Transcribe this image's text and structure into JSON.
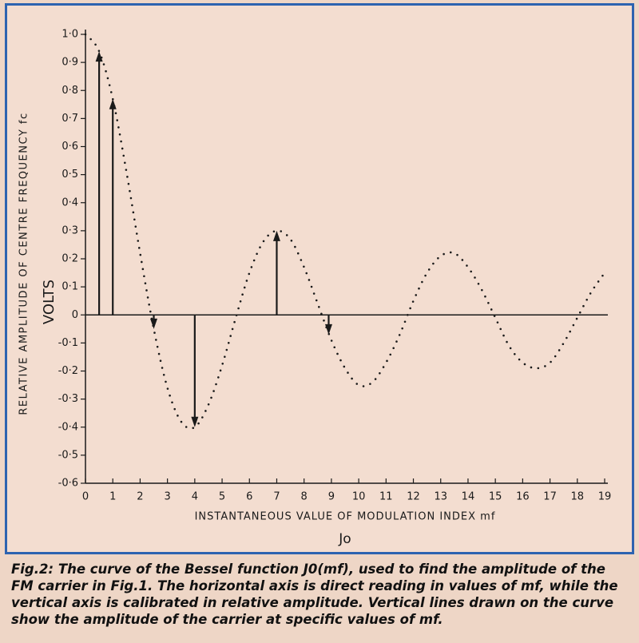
{
  "chart_data": {
    "type": "line",
    "x_label": "INSTANTANEOUS VALUE OF MODULATION INDEX mf",
    "x_sublabel": "Jo",
    "y_label": "RELATIVE AMPLITUDE OF CENTRE FREQUENCY fc",
    "y_unit": "VOLTS",
    "caption": "Fig.2: The curve of the Bessel function J0(mf), used to find the amplitude of the FM carrier in Fig.1. The horizontal axis is direct reading in values of mf, while the vertical axis is calibrated in relative amplitude. Vertical lines drawn on the curve show the amplitude of the carrier at specific values of mf.",
    "color": "#1a1a1a",
    "x": [
      0,
      0.5,
      1,
      1.5,
      2,
      2.5,
      3,
      3.5,
      4,
      4.5,
      5,
      5.5,
      6,
      6.5,
      7,
      7.5,
      8,
      8.5,
      9,
      9.5,
      10,
      10.5,
      11,
      11.5,
      12,
      12.5,
      13,
      13.5,
      14,
      14.5,
      15,
      15.5,
      16,
      16.5,
      17,
      17.5,
      18,
      18.5,
      19
    ],
    "values": [
      1.0,
      0.94,
      0.77,
      0.51,
      0.22,
      -0.05,
      -0.26,
      -0.38,
      -0.4,
      -0.32,
      -0.18,
      -0.01,
      0.15,
      0.26,
      0.3,
      0.27,
      0.17,
      0.04,
      -0.09,
      -0.19,
      -0.25,
      -0.24,
      -0.17,
      -0.07,
      0.05,
      0.15,
      0.21,
      0.22,
      0.17,
      0.09,
      -0.01,
      -0.11,
      -0.17,
      -0.19,
      -0.17,
      -0.1,
      -0.01,
      0.08,
      0.15
    ],
    "arrows": {
      "x": [
        0.5,
        1,
        2.5,
        4,
        7,
        8.9
      ],
      "values": [
        0.94,
        0.77,
        -0.05,
        -0.4,
        0.3,
        -0.07
      ]
    },
    "xlim": [
      0,
      19
    ],
    "xticks": [
      0,
      1,
      2,
      3,
      4,
      5,
      6,
      7,
      8,
      9,
      10,
      11,
      12,
      13,
      14,
      15,
      16,
      17,
      18,
      19
    ],
    "ylim": [
      -0.6,
      1.0
    ],
    "yticks": [
      {
        "value": 1.0,
        "label": "1·0"
      },
      {
        "value": 0.9,
        "label": "0·9"
      },
      {
        "value": 0.8,
        "label": "0·8"
      },
      {
        "value": 0.7,
        "label": "0·7"
      },
      {
        "value": 0.6,
        "label": "0·6"
      },
      {
        "value": 0.5,
        "label": "0·5"
      },
      {
        "value": 0.4,
        "label": "0·4"
      },
      {
        "value": 0.3,
        "label": "0·3"
      },
      {
        "value": 0.2,
        "label": "0·2"
      },
      {
        "value": 0.1,
        "label": "0·1"
      },
      0,
      {
        "value": -0.1,
        "label": "-0·1"
      },
      {
        "value": -0.2,
        "label": "-0·2"
      },
      {
        "value": -0.3,
        "label": "-0·3"
      },
      {
        "value": -0.4,
        "label": "-0·4"
      },
      {
        "value": -0.5,
        "label": "-0·5"
      },
      {
        "value": -0.6,
        "label": "-0·6"
      }
    ],
    "grid": false
  }
}
